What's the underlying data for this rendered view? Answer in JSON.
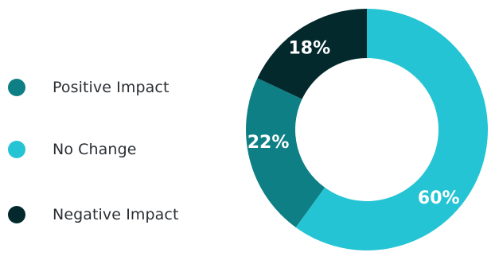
{
  "chart_data": {
    "type": "pie",
    "categories": [
      "Positive Impact",
      "No Change",
      "Negative Impact"
    ],
    "values": [
      22,
      60,
      18
    ],
    "slice_labels": [
      "22%",
      "60%",
      "18%"
    ],
    "colors": {
      "Positive Impact": "#0e7f84",
      "No Change": "#25c4d4",
      "Negative Impact": "#03292c"
    },
    "donut": true,
    "legend": "left"
  },
  "legend": {
    "items": [
      {
        "label": "Positive Impact",
        "color": "#0e7f84"
      },
      {
        "label": "No Change",
        "color": "#25c4d4"
      },
      {
        "label": "Negative Impact",
        "color": "#03292c"
      }
    ]
  }
}
